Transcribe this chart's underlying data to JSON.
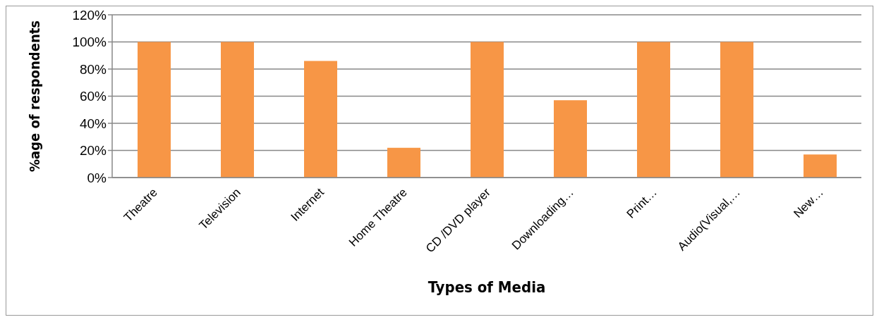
{
  "chart_data": {
    "type": "bar",
    "xlabel": "Types of Media",
    "ylabel": "%age of respondents",
    "categories": [
      "Theatre",
      "Television",
      "Internet",
      "Home Theatre",
      "CD /DVD player",
      "Downloading…",
      "Print…",
      "Audio(Visual,…",
      "New…"
    ],
    "values": [
      100,
      100,
      86,
      22,
      100,
      57,
      100,
      100,
      17
    ],
    "color": "#f79646",
    "ylim": [
      0,
      120
    ],
    "yticks": [
      {
        "value": 0,
        "label": "0%"
      },
      {
        "value": 20,
        "label": "20%"
      },
      {
        "value": 40,
        "label": "40%"
      },
      {
        "value": 60,
        "label": "60%"
      },
      {
        "value": 80,
        "label": "80%"
      },
      {
        "value": 100,
        "label": "100%"
      },
      {
        "value": 120,
        "label": "120%"
      }
    ],
    "grid": "y"
  }
}
